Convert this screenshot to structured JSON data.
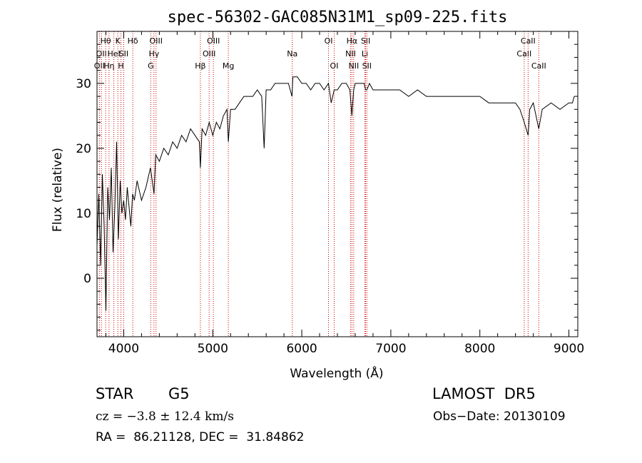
{
  "chart_data": {
    "type": "line",
    "title": "spec-56302-GAC085N31M1_sp09-225.fits",
    "xlabel": "Wavelength (Å)",
    "ylabel": "Flux (relative)",
    "xlim": [
      3700,
      9100
    ],
    "ylim": [
      -9,
      38
    ],
    "x_ticks": [
      4000,
      5000,
      6000,
      7000,
      8000,
      9000
    ],
    "x_tick_labels": [
      "4000",
      "5000",
      "6000",
      "7000",
      "8000",
      "9000"
    ],
    "y_ticks": [
      0,
      10,
      20,
      30
    ],
    "y_tick_labels": [
      "0",
      "10",
      "20",
      "30"
    ],
    "grid": false,
    "line_color": "#000000",
    "marker_color": "#cc0000",
    "series": [
      {
        "x": [
          3700,
          3720,
          3740,
          3760,
          3780,
          3800,
          3820,
          3840,
          3860,
          3880,
          3900,
          3920,
          3940,
          3960,
          3980,
          4000,
          4020,
          4040,
          4060,
          4080,
          4100,
          4120,
          4150,
          4200,
          4250,
          4300,
          4340,
          4360,
          4400,
          4450,
          4500,
          4550,
          4600,
          4650,
          4700,
          4750,
          4800,
          4850,
          4861,
          4880,
          4920,
          4960,
          5000,
          5040,
          5080,
          5120,
          5160,
          5175,
          5200,
          5250,
          5300,
          5350,
          5400,
          5450,
          5500,
          5550,
          5577,
          5600,
          5650,
          5700,
          5750,
          5800,
          5850,
          5890,
          5900,
          5950,
          6000,
          6050,
          6100,
          6150,
          6200,
          6250,
          6300,
          6330,
          6364,
          6400,
          6450,
          6500,
          6540,
          6563,
          6583,
          6600,
          6650,
          6700,
          6717,
          6731,
          6760,
          6800,
          6900,
          7000,
          7100,
          7200,
          7300,
          7400,
          7500,
          7600,
          7700,
          7800,
          7900,
          8000,
          8100,
          8200,
          8300,
          8400,
          8450,
          8498,
          8542,
          8560,
          8600,
          8662,
          8700,
          8800,
          8900,
          9000,
          9040,
          9060
        ],
        "y": [
          5,
          13,
          2,
          16,
          8,
          -5,
          14,
          9,
          17,
          4,
          11,
          21,
          6,
          15,
          10,
          12,
          9,
          14,
          11,
          8,
          13,
          12,
          15,
          12,
          14,
          17,
          13,
          19,
          18,
          20,
          19,
          21,
          20,
          22,
          21,
          23,
          22,
          21,
          17,
          23,
          22,
          24,
          22,
          24,
          23,
          25,
          26,
          21,
          26,
          26,
          27,
          28,
          28,
          28,
          29,
          28,
          20,
          29,
          29,
          30,
          30,
          30,
          30,
          28,
          31,
          31,
          30,
          30,
          29,
          30,
          30,
          29,
          30,
          27,
          29,
          29,
          30,
          30,
          29,
          25,
          29,
          30,
          30,
          30,
          29,
          29,
          30,
          29,
          29,
          29,
          29,
          28,
          29,
          28,
          28,
          28,
          28,
          28,
          28,
          28,
          27,
          27,
          27,
          27,
          26,
          24,
          22,
          26,
          27,
          23,
          26,
          27,
          26,
          27,
          27,
          28
        ]
      }
    ],
    "line_markers": [
      {
        "x": 3727,
        "label": "OII",
        "row": 2
      },
      {
        "x": 3750,
        "label": "OII",
        "row": 1
      },
      {
        "x": 3797,
        "label": "Hθ",
        "row": 0
      },
      {
        "x": 3835,
        "label": "Hη",
        "row": 2
      },
      {
        "x": 3889,
        "label": "HeI",
        "row": 1
      },
      {
        "x": 3934,
        "label": "K",
        "row": 0
      },
      {
        "x": 3969,
        "label": "H",
        "row": 2
      },
      {
        "x": 4000,
        "label": "SII",
        "row": 1
      },
      {
        "x": 4102,
        "label": "Hδ",
        "row": 0
      },
      {
        "x": 4304,
        "label": "G",
        "row": 2
      },
      {
        "x": 4340,
        "label": "Hγ",
        "row": 1
      },
      {
        "x": 4363,
        "label": "OIII",
        "row": 0
      },
      {
        "x": 4861,
        "label": "Hβ",
        "row": 2
      },
      {
        "x": 4959,
        "label": "OIII",
        "row": 1
      },
      {
        "x": 5007,
        "label": "OIII",
        "row": 0
      },
      {
        "x": 5175,
        "label": "Mg",
        "row": 2
      },
      {
        "x": 5893,
        "label": "Na",
        "row": 1
      },
      {
        "x": 6300,
        "label": "OI",
        "row": 0
      },
      {
        "x": 6364,
        "label": "OI",
        "row": 2
      },
      {
        "x": 6548,
        "label": "NII",
        "row": 1
      },
      {
        "x": 6563,
        "label": "Hα",
        "row": 0
      },
      {
        "x": 6583,
        "label": "NII",
        "row": 2
      },
      {
        "x": 6708,
        "label": "Li",
        "row": 1
      },
      {
        "x": 6717,
        "label": "SII",
        "row": 0
      },
      {
        "x": 6731,
        "label": "SII",
        "row": 2
      },
      {
        "x": 8498,
        "label": "CaII",
        "row": 1
      },
      {
        "x": 8542,
        "label": "CaII",
        "row": 0
      },
      {
        "x": 8662,
        "label": "CaII",
        "row": 2
      }
    ]
  },
  "info": {
    "object_class": "STAR",
    "subclass": "G5",
    "survey": "LAMOST  DR5",
    "redshift": "cz = −3.8 ± 12.4 km/s",
    "obs_date": "Obs−Date: 20130109",
    "coords": "RA =  86.21128, DEC =  31.84862"
  }
}
